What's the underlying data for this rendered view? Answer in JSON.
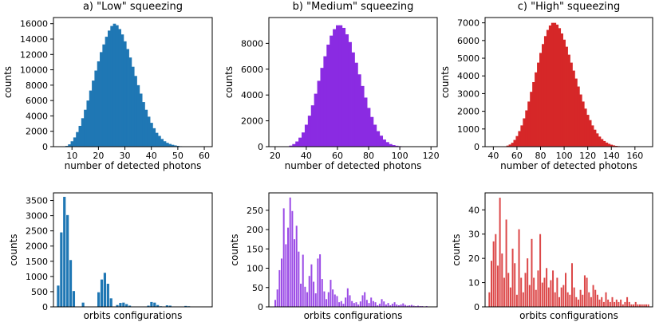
{
  "chart_data": [
    {
      "type": "bar",
      "title": "a) \"Low\" squeezing",
      "xlabel": "number of detected photons",
      "ylabel": "counts",
      "color": "#1f77b4",
      "xlim": [
        3,
        63
      ],
      "ylim": [
        0,
        16800
      ],
      "xticks": [
        10,
        20,
        30,
        40,
        50,
        60
      ],
      "yticks": [
        0,
        2000,
        4000,
        6000,
        8000,
        10000,
        12000,
        14000,
        16000
      ],
      "x": [
        8,
        9,
        10,
        11,
        12,
        13,
        14,
        15,
        16,
        17,
        18,
        19,
        20,
        21,
        22,
        23,
        24,
        25,
        26,
        27,
        28,
        29,
        30,
        31,
        32,
        33,
        34,
        35,
        36,
        37,
        38,
        39,
        40,
        41,
        42,
        43,
        44,
        45,
        46,
        47,
        48,
        49,
        50,
        51,
        52
      ],
      "values": [
        100,
        300,
        700,
        1200,
        1900,
        2700,
        3700,
        4800,
        6000,
        7300,
        8600,
        9900,
        11100,
        12300,
        13300,
        14300,
        15100,
        15700,
        16000,
        15800,
        15300,
        14600,
        13700,
        12700,
        11600,
        10400,
        9200,
        8000,
        6900,
        5800,
        4800,
        3900,
        3100,
        2400,
        1800,
        1400,
        1000,
        700,
        500,
        350,
        240,
        160,
        100,
        60,
        30
      ]
    },
    {
      "type": "bar",
      "title": "b) \"Medium\" squeezing",
      "xlabel": "number of detected photons",
      "ylabel": "counts",
      "color": "#8a2be2",
      "xlim": [
        16,
        124
      ],
      "ylim": [
        0,
        10000
      ],
      "xticks": [
        20,
        40,
        60,
        80,
        100,
        120
      ],
      "yticks": [
        0,
        2000,
        4000,
        6000,
        8000
      ],
      "x": [
        28,
        30,
        32,
        34,
        36,
        38,
        40,
        42,
        44,
        46,
        48,
        50,
        52,
        54,
        56,
        58,
        60,
        62,
        64,
        66,
        68,
        70,
        72,
        74,
        76,
        78,
        80,
        82,
        84,
        86,
        88,
        90,
        92,
        94,
        96,
        98,
        100,
        102,
        104
      ],
      "values": [
        30,
        80,
        200,
        400,
        700,
        1100,
        1700,
        2400,
        3200,
        4100,
        5100,
        6100,
        7000,
        7900,
        8600,
        9100,
        9400,
        9400,
        9200,
        8700,
        8100,
        7300,
        6500,
        5600,
        4700,
        3800,
        3000,
        2300,
        1700,
        1200,
        850,
        550,
        350,
        200,
        120,
        70,
        40,
        20,
        10
      ]
    },
    {
      "type": "bar",
      "title": "c) \"High\" squeezing",
      "xlabel": "number of detected photons",
      "ylabel": "counts",
      "color": "#d62728",
      "xlim": [
        33,
        175
      ],
      "ylim": [
        0,
        7300
      ],
      "xticks": [
        40,
        60,
        80,
        100,
        120,
        140,
        160
      ],
      "yticks": [
        0,
        1000,
        2000,
        3000,
        4000,
        5000,
        6000,
        7000
      ],
      "x": [
        50,
        52,
        54,
        56,
        58,
        60,
        62,
        64,
        66,
        68,
        70,
        72,
        74,
        76,
        78,
        80,
        82,
        84,
        86,
        88,
        90,
        92,
        94,
        96,
        98,
        100,
        102,
        104,
        106,
        108,
        110,
        112,
        114,
        116,
        118,
        120,
        122,
        124,
        126,
        128,
        130,
        132,
        134,
        136,
        138,
        140,
        142,
        144,
        146,
        148,
        150
      ],
      "values": [
        20,
        60,
        120,
        220,
        380,
        600,
        880,
        1200,
        1600,
        2050,
        2550,
        3100,
        3650,
        4200,
        4750,
        5300,
        5800,
        6250,
        6600,
        6850,
        7000,
        7000,
        6900,
        6700,
        6400,
        6050,
        5650,
        5200,
        4750,
        4300,
        3850,
        3400,
        2950,
        2550,
        2150,
        1800,
        1500,
        1200,
        960,
        750,
        570,
        430,
        320,
        230,
        160,
        110,
        70,
        45,
        30,
        20,
        10
      ]
    },
    {
      "type": "bar",
      "xlabel": "orbits configurations",
      "ylabel": "counts",
      "color": "#1f77b4",
      "ylim": [
        0,
        3750
      ],
      "yticks": [
        0,
        500,
        1000,
        1500,
        2000,
        2500,
        3000,
        3500
      ],
      "values": [
        700,
        2450,
        3620,
        3020,
        1540,
        520,
        0,
        0,
        140,
        0,
        0,
        0,
        0,
        480,
        900,
        1120,
        760,
        280,
        0,
        60,
        130,
        140,
        90,
        40,
        0,
        0,
        0,
        0,
        0,
        40,
        160,
        140,
        60,
        20,
        0,
        50,
        40,
        0,
        0,
        0,
        0,
        30,
        20,
        0,
        0,
        0,
        0,
        0,
        10
      ]
    },
    {
      "type": "bar",
      "xlabel": "orbits configurations",
      "ylabel": "counts",
      "color": "#8a2be2",
      "ylim": [
        0,
        295
      ],
      "yticks": [
        0,
        50,
        100,
        150,
        200,
        250
      ],
      "values": [
        0,
        18,
        45,
        95,
        125,
        255,
        162,
        205,
        283,
        248,
        175,
        210,
        143,
        60,
        135,
        52,
        38,
        80,
        110,
        65,
        35,
        125,
        136,
        72,
        40,
        20,
        38,
        70,
        45,
        32,
        28,
        12,
        15,
        8,
        24,
        48,
        30,
        15,
        10,
        12,
        6,
        14,
        30,
        38,
        18,
        10,
        24,
        15,
        12,
        4,
        8,
        20,
        14,
        6,
        10,
        4,
        8,
        12,
        6,
        4,
        6,
        9,
        5,
        3,
        4,
        5,
        3,
        2,
        3,
        2,
        2,
        1,
        2,
        1,
        1,
        1
      ]
    },
    {
      "type": "bar",
      "xlabel": "orbits configurations",
      "ylabel": "counts",
      "color": "#d62728",
      "ylim": [
        0,
        47
      ],
      "yticks": [
        0,
        10,
        20,
        30,
        40
      ],
      "values": [
        6,
        19,
        27,
        30,
        17,
        45,
        22,
        12,
        36,
        14,
        8,
        24,
        18,
        5,
        32,
        12,
        6,
        14,
        20,
        9,
        28,
        12,
        7,
        15,
        30,
        10,
        12,
        16,
        8,
        11,
        15,
        6,
        12,
        4,
        8,
        9,
        14,
        6,
        5,
        18,
        8,
        4,
        3,
        7,
        5,
        13,
        12,
        6,
        4,
        9,
        7,
        5,
        3,
        4,
        2,
        6,
        3,
        2,
        4,
        2,
        3,
        2,
        3,
        1,
        2,
        4,
        2,
        1,
        1,
        2,
        1,
        1,
        1,
        1,
        1,
        1
      ]
    }
  ]
}
